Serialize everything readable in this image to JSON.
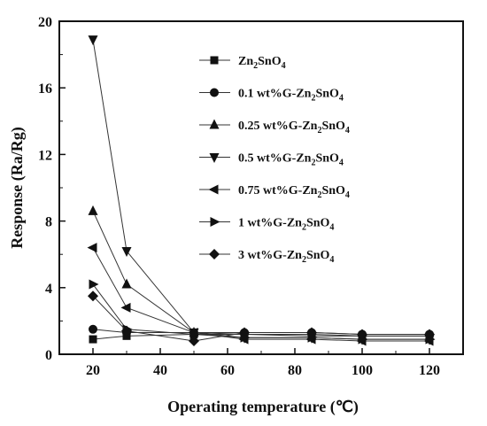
{
  "chart_data": {
    "type": "line",
    "xlabel": "Operating temperature (℃)",
    "ylabel": "Response (Ra/Rg)",
    "xlim": [
      10,
      130
    ],
    "ylim": [
      0,
      20
    ],
    "xticks": [
      20,
      40,
      60,
      80,
      100,
      120
    ],
    "yticks": [
      0,
      4,
      8,
      12,
      16,
      20
    ],
    "grid": false,
    "legend_position": "top-right",
    "x": [
      20,
      30,
      50,
      65,
      85,
      100,
      120
    ],
    "series": [
      {
        "name": "Zn2SnO4",
        "marker": "square",
        "legend": [
          "Zn",
          "2",
          "SnO",
          "4",
          ""
        ],
        "values": [
          0.9,
          1.1,
          1.2,
          1.2,
          1.2,
          1.1,
          1.1
        ]
      },
      {
        "name": "0.1 wt%G-Zn2SnO4",
        "marker": "circle",
        "legend": [
          "0.1 wt%G-Zn",
          "2",
          "SnO",
          "4",
          ""
        ],
        "values": [
          1.5,
          1.3,
          1.3,
          1.3,
          1.3,
          1.2,
          1.2
        ]
      },
      {
        "name": "0.25 wt%G-Zn2SnO4",
        "marker": "triangle-up",
        "legend": [
          "0.25 wt%G-Zn",
          "2",
          "SnO",
          "4",
          ""
        ],
        "values": [
          8.6,
          4.2,
          1.3,
          1.2,
          1.1,
          1.1,
          1.1
        ]
      },
      {
        "name": "0.5 wt%G-Zn2SnO4",
        "marker": "triangle-down",
        "legend": [
          "0.5 wt%G-Zn",
          "2",
          "SnO",
          "4",
          ""
        ],
        "values": [
          18.9,
          6.2,
          1.3,
          1.0,
          1.0,
          0.9,
          0.9
        ]
      },
      {
        "name": "0.75 wt%G-Zn2SnO4",
        "marker": "triangle-left",
        "legend": [
          "0.75 wt%G-Zn",
          "2",
          "SnO",
          "4",
          ""
        ],
        "values": [
          6.4,
          2.8,
          1.3,
          0.9,
          0.9,
          0.8,
          0.8
        ]
      },
      {
        "name": "1 wt%G-Zn2SnO4",
        "marker": "triangle-right",
        "legend": [
          "1 wt%G-Zn",
          "2",
          "SnO",
          "4",
          ""
        ],
        "values": [
          4.2,
          1.5,
          1.2,
          1.0,
          1.0,
          0.9,
          0.9
        ]
      },
      {
        "name": "3 wt%G-Zn2SnO4",
        "marker": "diamond",
        "legend": [
          "3 wt%G-Zn",
          "2",
          "SnO",
          "4",
          ""
        ],
        "values": [
          3.5,
          1.4,
          0.8,
          1.3,
          1.3,
          1.2,
          1.2
        ]
      }
    ]
  }
}
